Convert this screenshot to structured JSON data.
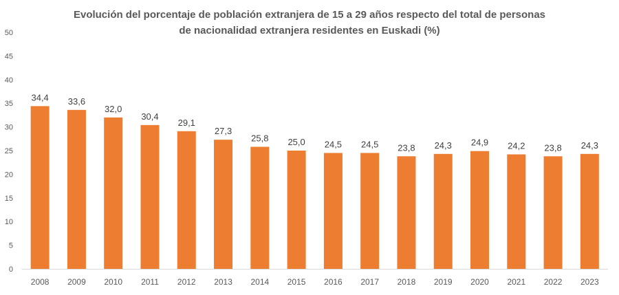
{
  "chart_data": {
    "type": "bar",
    "title": [
      "Evolución del porcentaje de población extranjera de 15 a 29 años respecto del total de personas",
      "de nacionalidad extranjera residentes en Euskadi (%)"
    ],
    "categories": [
      "2008",
      "2009",
      "2010",
      "2011",
      "2012",
      "2013",
      "2014",
      "2015",
      "2016",
      "2017",
      "2018",
      "2019",
      "2020",
      "2021",
      "2022",
      "2023"
    ],
    "values": [
      34.4,
      33.6,
      32.0,
      30.4,
      29.1,
      27.3,
      25.8,
      25.0,
      24.5,
      24.5,
      23.8,
      24.3,
      24.9,
      24.2,
      23.8,
      24.3
    ],
    "data_labels": [
      "34,4",
      "33,6",
      "32,0",
      "30,4",
      "29,1",
      "27,3",
      "25,8",
      "25,0",
      "24,5",
      "24,5",
      "23,8",
      "24,3",
      "24,9",
      "24,2",
      "23,8",
      "24,3"
    ],
    "xlabel": "",
    "ylabel": "",
    "ylim": [
      0,
      50
    ],
    "yticks": [
      0,
      5,
      10,
      15,
      20,
      25,
      30,
      35,
      40,
      45,
      50
    ],
    "grid": false,
    "legend": "none",
    "colors": {
      "bar": "#ED7D31",
      "text": "#595959",
      "axis": "#D9D9D9"
    }
  }
}
